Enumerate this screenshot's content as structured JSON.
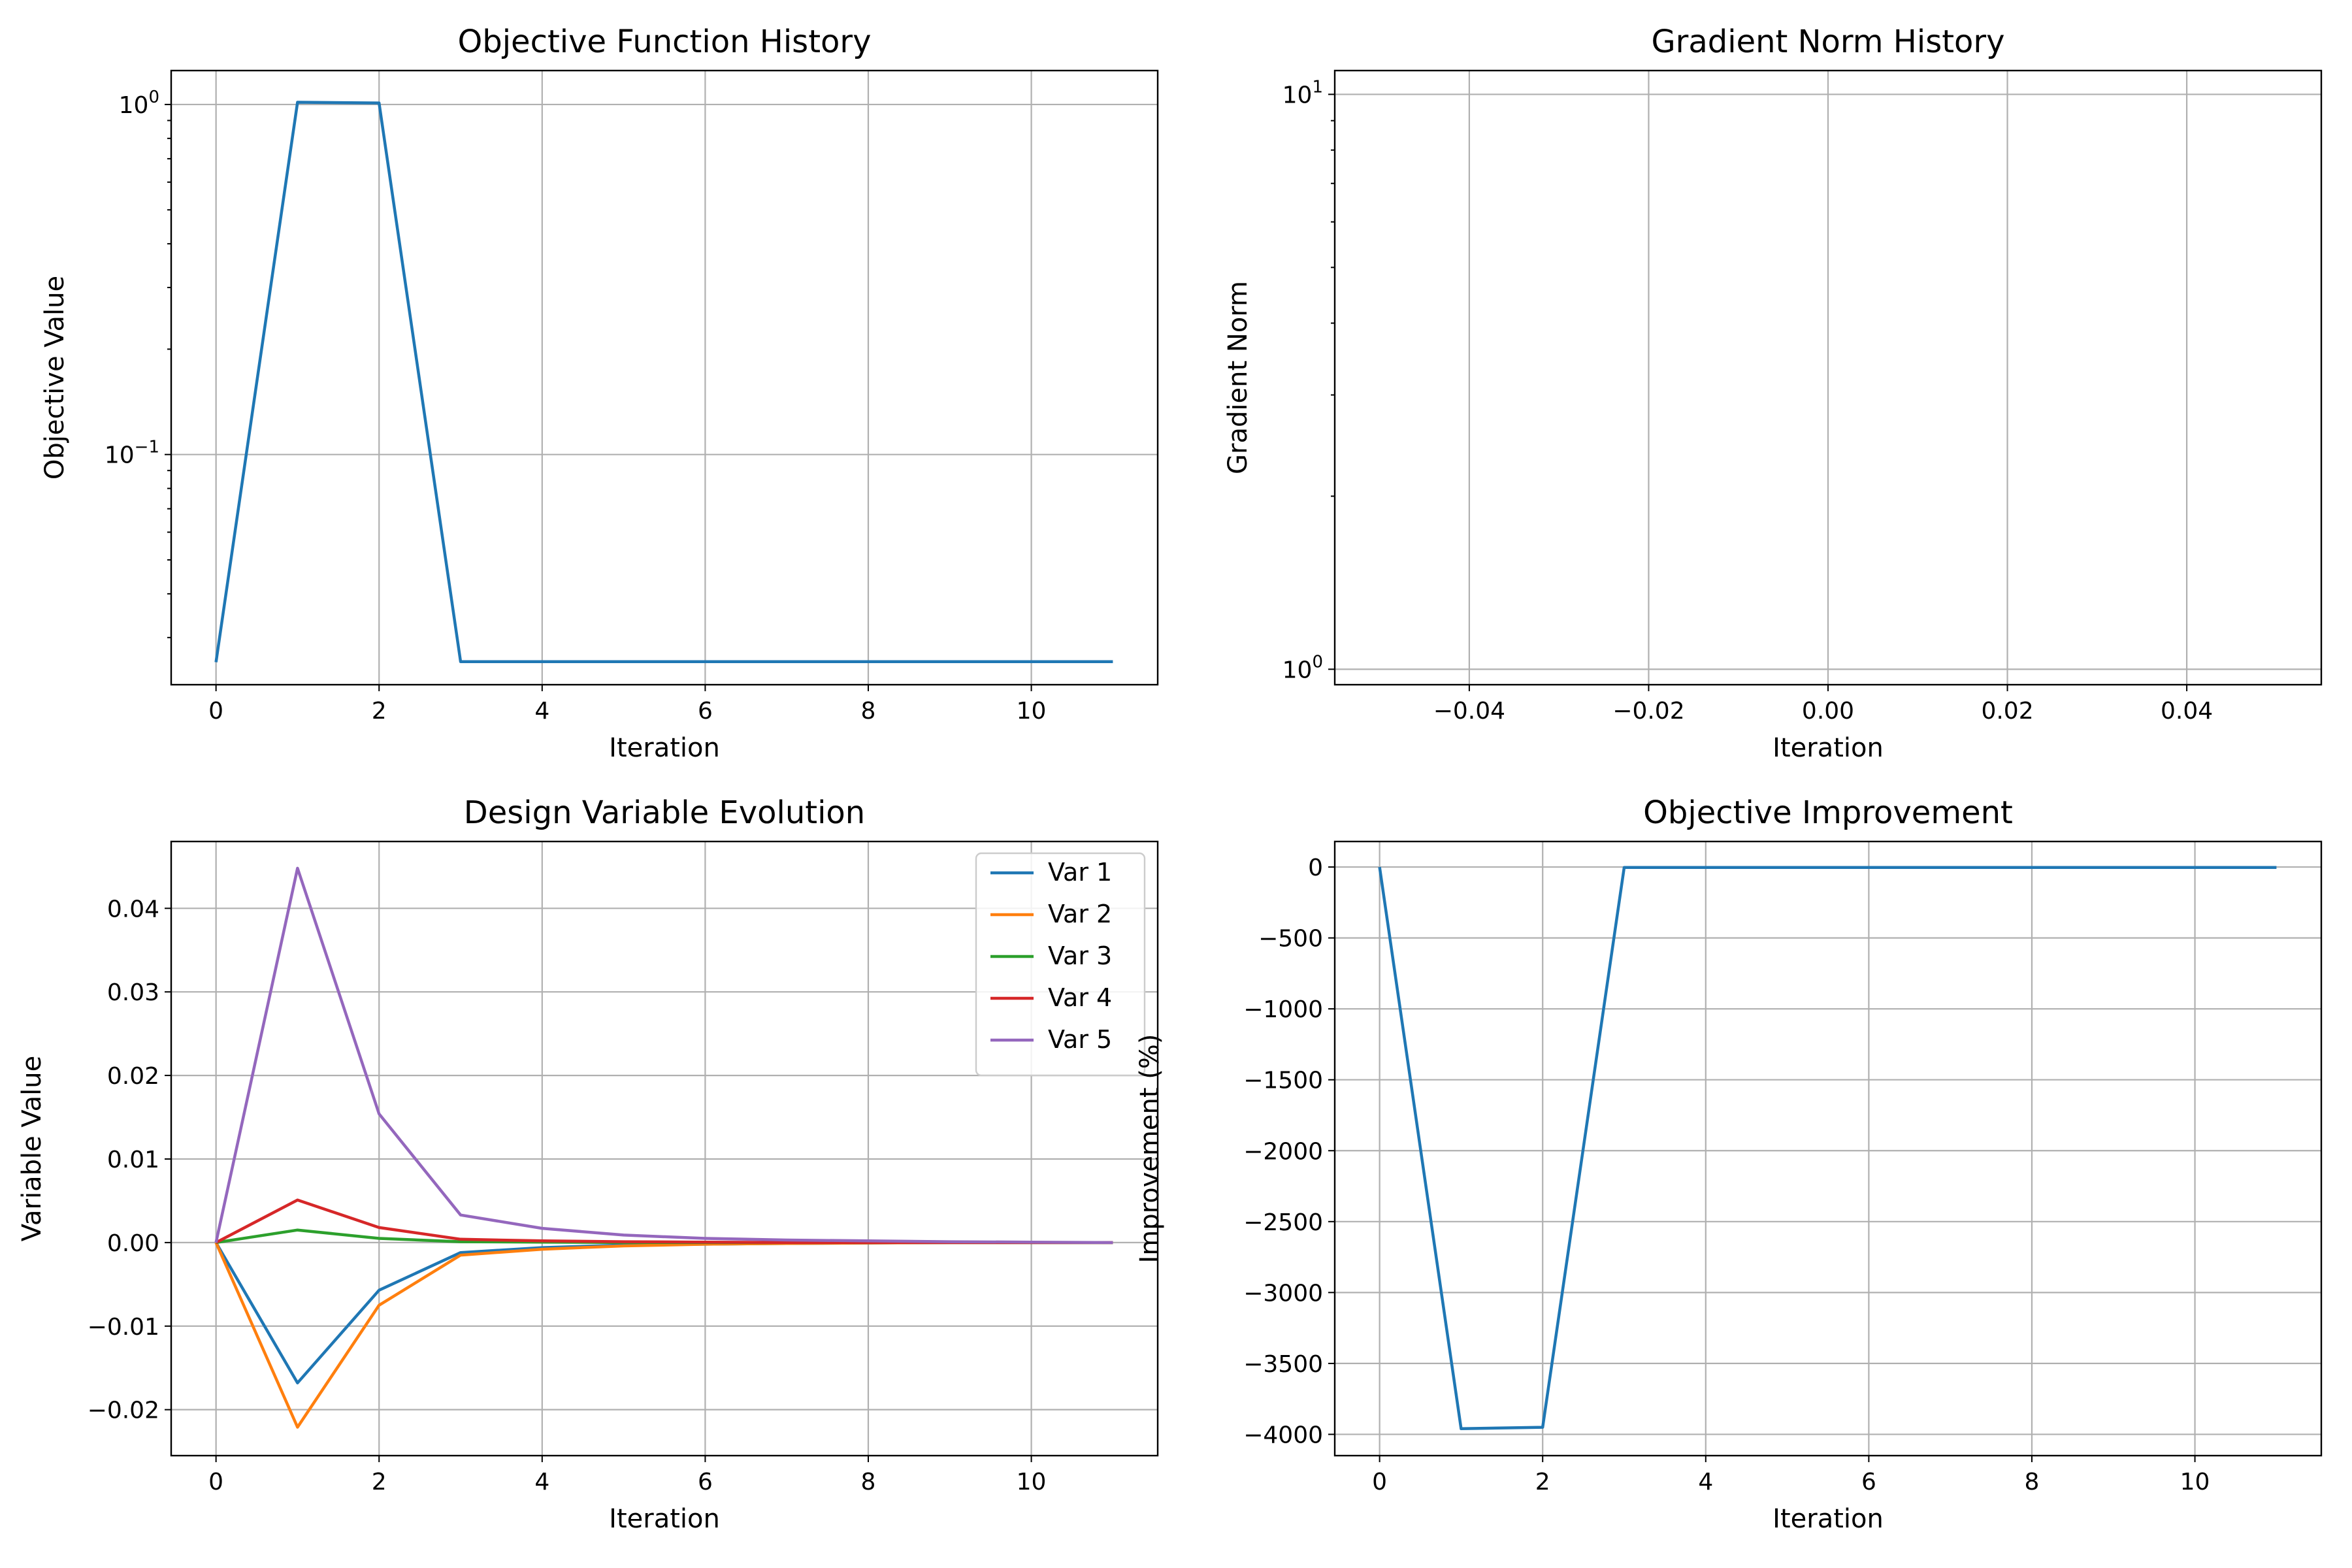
{
  "chart_data": [
    {
      "type": "line",
      "title": "Objective Function History",
      "xlabel": "Iteration",
      "ylabel": "Objective Value",
      "yscale": "log",
      "grid": true,
      "xlim": [
        -0.55,
        11.55
      ],
      "ylim": [
        0.022,
        1.25
      ],
      "xticks": [
        0,
        2,
        4,
        6,
        8,
        10
      ],
      "xtick_labels": [
        "0",
        "2",
        "4",
        "6",
        "8",
        "10"
      ],
      "yticks": [
        1,
        0.1
      ],
      "ytick_labels": [
        {
          "base": "10",
          "exp": "0"
        },
        {
          "base": "10",
          "exp": "−1"
        }
      ],
      "series": [
        {
          "color": "#1f77b4",
          "x": [
            0,
            1,
            2,
            3,
            4,
            5,
            6,
            7,
            8,
            9,
            10,
            11
          ],
          "values": [
            0.0255,
            1.015,
            1.01,
            0.0256,
            0.0256,
            0.0256,
            0.0256,
            0.0256,
            0.0256,
            0.0256,
            0.0256,
            0.0256
          ]
        }
      ]
    },
    {
      "type": "line",
      "title": "Gradient Norm History",
      "xlabel": "Iteration",
      "ylabel": "Gradient Norm",
      "yscale": "log",
      "grid": true,
      "xlim": [
        -0.055,
        0.055
      ],
      "ylim": [
        0.94,
        11.0
      ],
      "xticks": [
        -0.04,
        -0.02,
        0,
        0.02,
        0.04
      ],
      "xtick_labels": [
        "−0.04",
        "−0.02",
        "0.00",
        "0.02",
        "0.04"
      ],
      "yticks": [
        10,
        1
      ],
      "ytick_labels": [
        {
          "base": "10",
          "exp": "1"
        },
        {
          "base": "10",
          "exp": "0"
        }
      ],
      "series": []
    },
    {
      "type": "line",
      "title": "Design Variable Evolution",
      "xlabel": "Iteration",
      "ylabel": "Variable Value",
      "grid": true,
      "legend": "top-right",
      "xlim": [
        -0.55,
        11.55
      ],
      "ylim": [
        -0.0255,
        0.048
      ],
      "xticks": [
        0,
        2,
        4,
        6,
        8,
        10
      ],
      "xtick_labels": [
        "0",
        "2",
        "4",
        "6",
        "8",
        "10"
      ],
      "yticks": [
        0.04,
        0.03,
        0.02,
        0.01,
        0,
        -0.01,
        -0.02
      ],
      "ytick_labels": [
        "0.04",
        "0.03",
        "0.02",
        "0.01",
        "0.00",
        "−0.01",
        "−0.02"
      ],
      "series": [
        {
          "name": "Var 1",
          "color": "#1f77b4",
          "x": [
            0,
            1,
            2,
            3,
            4,
            5,
            6,
            7,
            8,
            9,
            10,
            11
          ],
          "values": [
            0,
            -0.0168,
            -0.0057,
            -0.0012,
            -0.0006,
            -0.0003,
            -0.0002,
            -0.0001,
            -5e-05,
            0,
            0,
            0
          ]
        },
        {
          "name": "Var 2",
          "color": "#ff7f0e",
          "x": [
            0,
            1,
            2,
            3,
            4,
            5,
            6,
            7,
            8,
            9,
            10,
            11
          ],
          "values": [
            0,
            -0.0221,
            -0.0075,
            -0.0015,
            -0.0008,
            -0.0004,
            -0.0002,
            -0.0001,
            -5e-05,
            0,
            0,
            0
          ]
        },
        {
          "name": "Var 3",
          "color": "#2ca02c",
          "x": [
            0,
            1,
            2,
            3,
            4,
            5,
            6,
            7,
            8,
            9,
            10,
            11
          ],
          "values": [
            0,
            0.0015,
            0.0005,
            0.0001,
            5e-05,
            0,
            0,
            0,
            0,
            0,
            0,
            0
          ]
        },
        {
          "name": "Var 4",
          "color": "#d62728",
          "x": [
            0,
            1,
            2,
            3,
            4,
            5,
            6,
            7,
            8,
            9,
            10,
            11
          ],
          "values": [
            0,
            0.0051,
            0.0018,
            0.0004,
            0.0002,
            0.0001,
            5e-05,
            0,
            0,
            0,
            0,
            0
          ]
        },
        {
          "name": "Var 5",
          "color": "#9467bd",
          "x": [
            0,
            1,
            2,
            3,
            4,
            5,
            6,
            7,
            8,
            9,
            10,
            11
          ],
          "values": [
            0,
            0.0448,
            0.0154,
            0.0033,
            0.0017,
            0.0009,
            0.0005,
            0.0003,
            0.0002,
            0.0001,
            5e-05,
            0
          ]
        }
      ]
    },
    {
      "type": "line",
      "title": "Objective Improvement",
      "xlabel": "Iteration",
      "ylabel": "Improvement (%)",
      "grid": true,
      "xlim": [
        -0.55,
        11.55
      ],
      "ylim": [
        -4150,
        180
      ],
      "xticks": [
        0,
        2,
        4,
        6,
        8,
        10
      ],
      "xtick_labels": [
        "0",
        "2",
        "4",
        "6",
        "8",
        "10"
      ],
      "yticks": [
        0,
        -500,
        -1000,
        -1500,
        -2000,
        -2500,
        -3000,
        -3500,
        -4000
      ],
      "ytick_labels": [
        "0",
        "−500",
        "−1000",
        "−1500",
        "−2000",
        "−2500",
        "−3000",
        "−3500",
        "−4000"
      ],
      "series": [
        {
          "color": "#1f77b4",
          "x": [
            0,
            1,
            2,
            3,
            4,
            5,
            6,
            7,
            8,
            9,
            10,
            11
          ],
          "values": [
            0,
            -3960,
            -3950,
            -3,
            -3,
            -3,
            -3,
            -3,
            -3,
            -3,
            -3,
            -3
          ]
        }
      ]
    }
  ]
}
